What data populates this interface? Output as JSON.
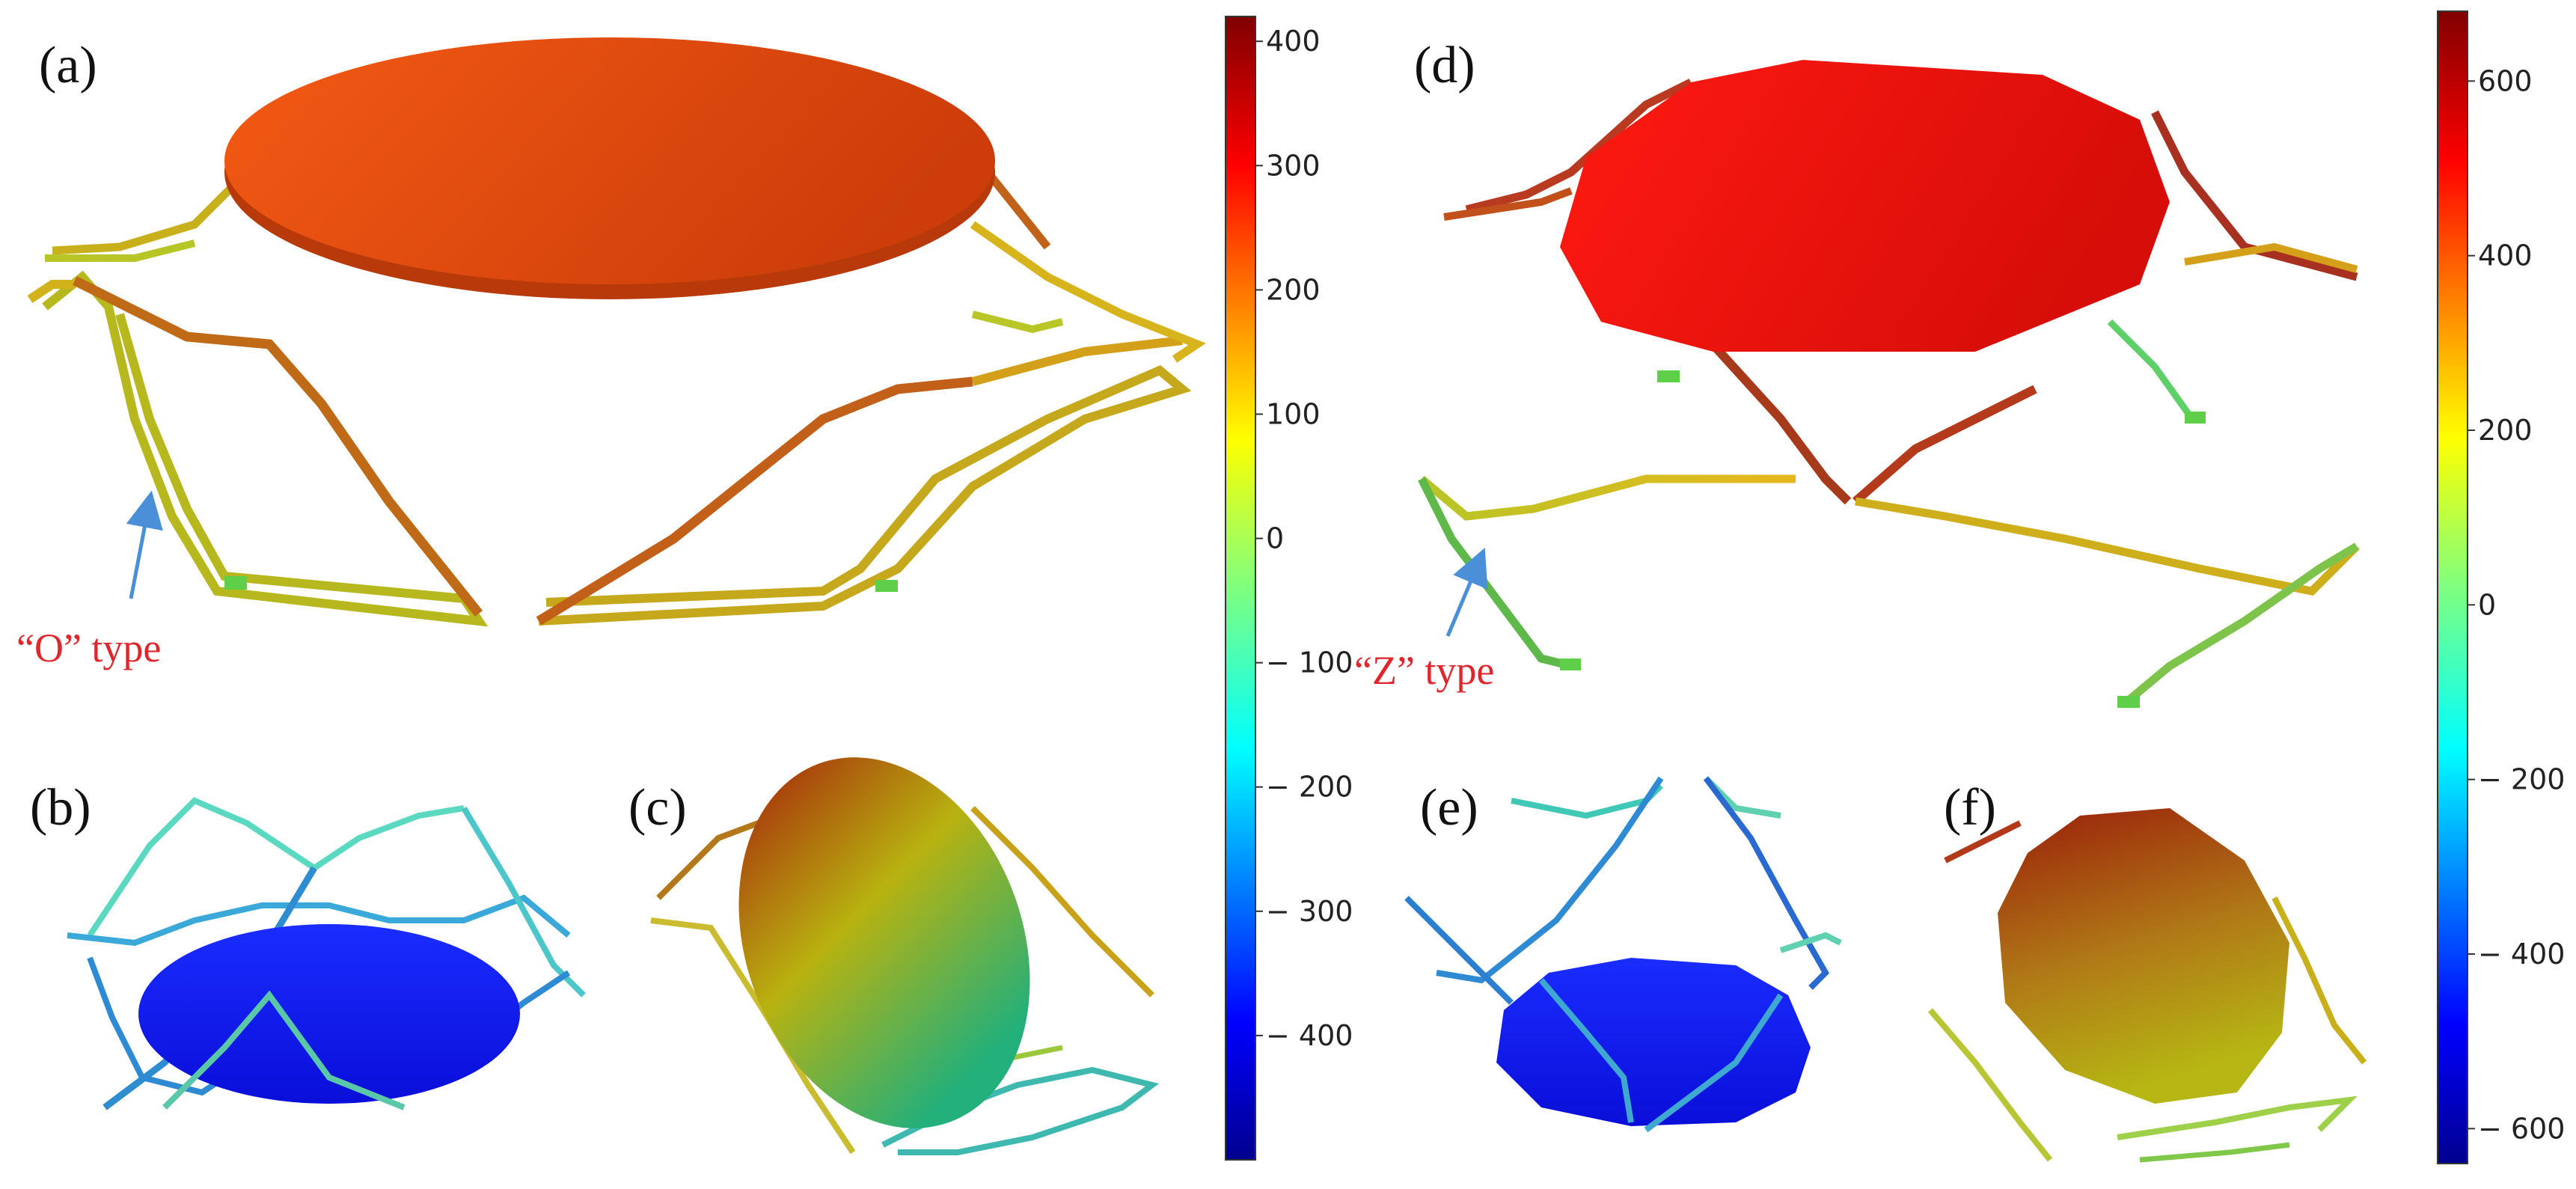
{
  "panels": {
    "a": "(a)",
    "b": "(b)",
    "c": "(c)",
    "d": "(d)",
    "e": "(e)",
    "f": "(f)"
  },
  "annotations": {
    "o_type": "“O”  type",
    "z_type": "“Z”  type"
  },
  "colorbars": [
    {
      "id": "left",
      "min": -500,
      "max": 420,
      "ticks": [
        "400",
        "300",
        "200",
        "100",
        "0",
        "− 100",
        "− 200",
        "− 300",
        "− 400"
      ],
      "tick_values": [
        400,
        300,
        200,
        100,
        0,
        -100,
        -200,
        -300,
        -400
      ]
    },
    {
      "id": "right",
      "min": -640,
      "max": 680,
      "ticks": [
        "600",
        "400",
        "200",
        "0",
        "− 200",
        "− 400",
        "− 600"
      ],
      "tick_values": [
        600,
        400,
        200,
        0,
        -200,
        -400,
        -600
      ]
    }
  ],
  "colors": {
    "annotation_red": "#e0262d",
    "arrow_blue": "#4a90d9"
  }
}
